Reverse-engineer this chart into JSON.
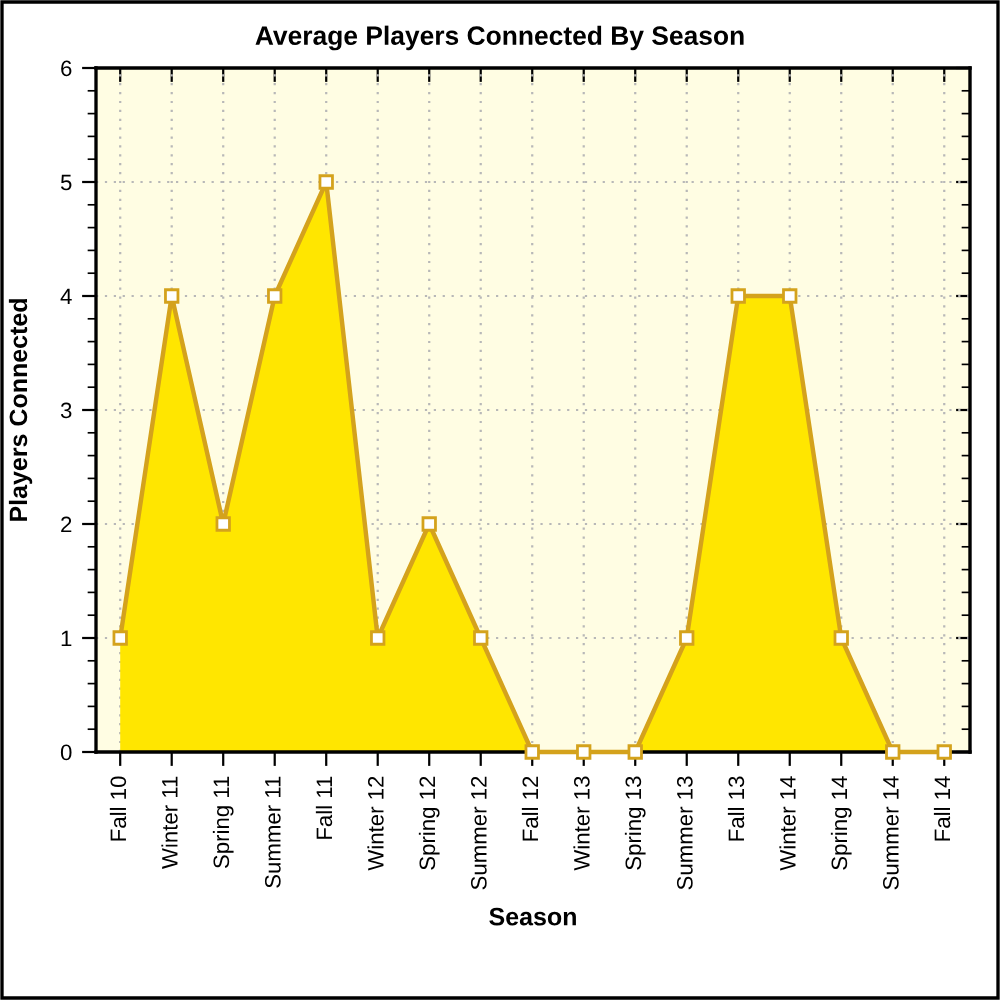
{
  "chart_data": {
    "type": "area",
    "title": "Average Players Connected By Season",
    "xlabel": "Season",
    "ylabel": "Players Connected",
    "categories": [
      "Fall 10",
      "Winter 11",
      "Spring 11",
      "Summer 11",
      "Fall 11",
      "Winter 12",
      "Spring 12",
      "Summer 12",
      "Fall 12",
      "Winter 13",
      "Spring 13",
      "Summer 13",
      "Fall 13",
      "Winter 14",
      "Spring 14",
      "Summer 14",
      "Fall 14"
    ],
    "series": [
      {
        "color": "#ffe600",
        "values": [
          1,
          4,
          2,
          4,
          5,
          1,
          2,
          1,
          0,
          0,
          0,
          1,
          4,
          4,
          1,
          0,
          0
        ]
      }
    ],
    "ylim": [
      0,
      6
    ],
    "yticks": [
      0,
      1,
      2,
      3,
      4,
      5,
      6
    ],
    "grid": true,
    "marker": "square",
    "line_style": "solid"
  }
}
